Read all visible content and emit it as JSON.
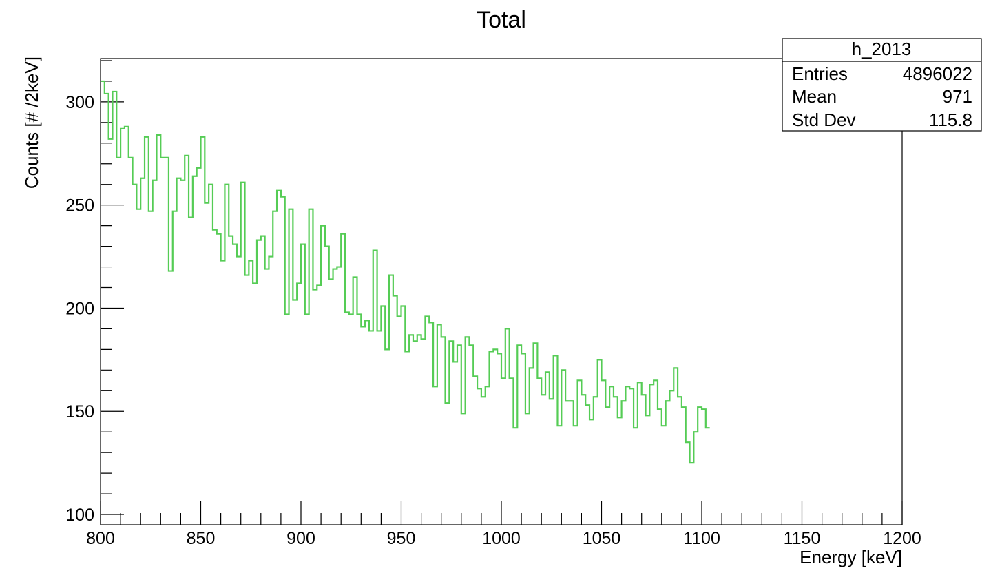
{
  "chart_data": {
    "type": "line",
    "title": "Total",
    "xlabel": "Energy [keV]",
    "ylabel": "Counts [# /2keV]",
    "xlim": [
      800,
      1200
    ],
    "ylim": [
      95,
      321
    ],
    "x_ticks": [
      "800",
      "850",
      "900",
      "950",
      "1000",
      "1050",
      "1100",
      "1150",
      "1200"
    ],
    "y_ticks": [
      "100",
      "150",
      "200",
      "250",
      "300"
    ],
    "grid": false,
    "series": [
      {
        "name": "h_2013",
        "color": "#55cc55",
        "bin_width": 2,
        "x_start": 800,
        "values": [
          310,
          304,
          282,
          305,
          273,
          287,
          288,
          273,
          260,
          248,
          263,
          283,
          247,
          262,
          284,
          273,
          273,
          218,
          247,
          263,
          262,
          274,
          244,
          264,
          268,
          283,
          251,
          260,
          238,
          236,
          223,
          260,
          235,
          231,
          225,
          261,
          216,
          223,
          212,
          233,
          235,
          219,
          225,
          247,
          257,
          254,
          197,
          248,
          204,
          212,
          231,
          197,
          248,
          209,
          211,
          240,
          230,
          214,
          219,
          220,
          236,
          198,
          197,
          215,
          197,
          191,
          194,
          189,
          228,
          189,
          201,
          180,
          216,
          206,
          196,
          201,
          179,
          187,
          184,
          187,
          185,
          196,
          193,
          162,
          192,
          186,
          154,
          184,
          174,
          182,
          149,
          186,
          182,
          167,
          161,
          157,
          162,
          179,
          180,
          178,
          166,
          190,
          166,
          142,
          182,
          178,
          149,
          171,
          183,
          166,
          158,
          169,
          156,
          177,
          143,
          170,
          155,
          155,
          143,
          165,
          158,
          153,
          146,
          157,
          175,
          165,
          152,
          162,
          157,
          147,
          155,
          162,
          161,
          142,
          164,
          158,
          148,
          163,
          165,
          151,
          143,
          155,
          160,
          171,
          157,
          152,
          135,
          125,
          140,
          152,
          151,
          142
        ]
      }
    ],
    "stats_box": {
      "name": "h_2013",
      "rows": [
        {
          "label": "Entries",
          "value": "4896022"
        },
        {
          "label": "Mean",
          "value": "971"
        },
        {
          "label": "Std Dev",
          "value": "115.8"
        }
      ]
    }
  }
}
